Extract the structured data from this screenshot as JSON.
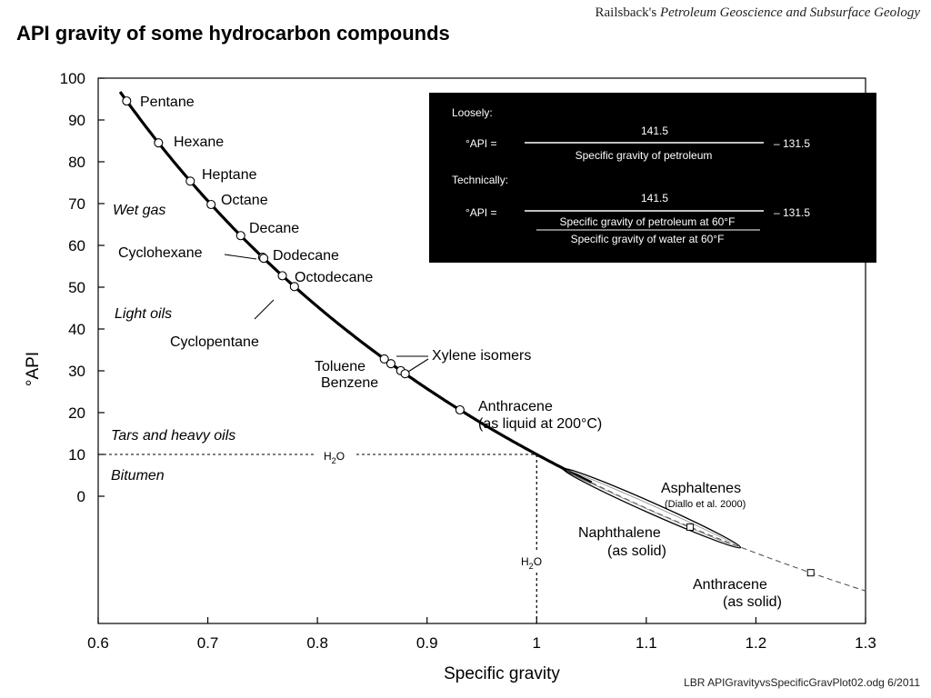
{
  "header": {
    "credit_prefix": "Railsback's ",
    "credit_italic": "Petroleum Geoscience and Subsurface Geology",
    "title": "API gravity of some hydrocarbon compounds"
  },
  "footer": {
    "file_note": "LBR APIGravityvsSpecificGravPlot02.odg  6/2011"
  },
  "formula_box": {
    "loosely_heading": "Loosely:",
    "loosely_lhs": "°API =",
    "loosely_numerator": "141.5",
    "loosely_denominator": "Specific gravity of petroleum",
    "loosely_rhs": "– 131.5",
    "technically_heading": "Technically:",
    "technically_lhs": "°API =",
    "technically_numerator": "141.5",
    "technically_denominator_top": "Specific gravity of petroleum at 60°F",
    "technically_denominator_bottom": "Specific gravity of water at 60°F",
    "technically_rhs": "– 131.5"
  },
  "regions": {
    "wet_gas": "Wet gas",
    "light_oils": "Light oils",
    "tars": "Tars and heavy oils",
    "bitumen": "Bitumen"
  },
  "reference_lines": {
    "h2o_horizontal_label": "H",
    "h2o_vertical_label": "H",
    "h2o_sub": "2",
    "h2o_suffix": "O"
  },
  "chart_data": {
    "type": "line",
    "xlabel": "Specific gravity",
    "ylabel": "°API",
    "xlim": [
      0.6,
      1.3
    ],
    "ylim": [
      0,
      100
    ],
    "x_ticks": [
      "0.6",
      "0.7",
      "0.8",
      "0.9",
      "1",
      "1.1",
      "1.2",
      "1.3"
    ],
    "y_ticks": [
      "0",
      "10",
      "20",
      "30",
      "40",
      "50",
      "60",
      "70",
      "80",
      "90",
      "100"
    ],
    "series": [
      {
        "curve": "API = 141.5 / SG − 131.5",
        "solid_range": [
          0.62,
          1.05
        ],
        "dashed_range": [
          1.05,
          1.3
        ]
      }
    ],
    "compounds": [
      {
        "name": "Pentane",
        "sg": 0.626,
        "api": 94.6,
        "marker": "circle"
      },
      {
        "name": "Hexane",
        "sg": 0.655,
        "api": 84.5,
        "marker": "circle"
      },
      {
        "name": "Heptane",
        "sg": 0.684,
        "api": 75.4,
        "marker": "circle"
      },
      {
        "name": "Octane",
        "sg": 0.703,
        "api": 69.8,
        "marker": "circle"
      },
      {
        "name": "Decane",
        "sg": 0.73,
        "api": 62.3,
        "marker": "circle"
      },
      {
        "name": "Cyclohexane",
        "sg": 0.779,
        "api": 50.1,
        "marker": "circle"
      },
      {
        "name": "Dodecane",
        "sg": 0.75,
        "api": 57.2,
        "marker": "circle"
      },
      {
        "name": "Octodecane",
        "sg": 0.768,
        "api": 52.7,
        "marker": "circle"
      },
      {
        "name": "Cyclopentane",
        "sg": 0.751,
        "api": 56.9,
        "marker": "circle"
      },
      {
        "name": "Toluene",
        "sg": 0.867,
        "api": 31.7,
        "marker": "circle"
      },
      {
        "name": "Benzene",
        "sg": 0.876,
        "api": 30.0,
        "marker": "circle"
      },
      {
        "name": "Xylene isomers",
        "sg": [
          0.861,
          0.88
        ],
        "api": [
          32.8,
          29.3
        ],
        "marker": "circle"
      },
      {
        "name": "Anthracene (as liquid at 200°C)",
        "sg": 0.93,
        "api": 20.7,
        "marker": "circle"
      },
      {
        "name": "Naphthalene (as solid)",
        "sg": 1.14,
        "api": -7.4,
        "marker": "square"
      },
      {
        "name": "Anthracene (as solid)",
        "sg": 1.25,
        "api": -18.3,
        "marker": "square"
      }
    ],
    "asphaltenes": {
      "name": "Asphaltenes",
      "source": "(Diallo et al. 2000)",
      "sg_range": [
        1.03,
        1.18
      ]
    },
    "annotations": {
      "pentane": "Pentane",
      "hexane": "Hexane",
      "heptane": "Heptane",
      "octane": "Octane",
      "decane": "Decane",
      "cyclohexane": "Cyclohexane",
      "dodecane": "Dodecane",
      "octodecane": "Octodecane",
      "cyclopentane": "Cyclopentane",
      "xylene": "Xylene isomers",
      "toluene": "Toluene",
      "benzene": "Benzene",
      "anthracene_liquid_1": "Anthracene",
      "anthracene_liquid_2": "(as liquid at 200°C)",
      "asphaltenes": "Asphaltenes",
      "asphaltenes_source": "(Diallo et al. 2000)",
      "naphthalene_1": "Naphthalene",
      "naphthalene_2": "(as solid)",
      "anthracene_solid_1": "Anthracene",
      "anthracene_solid_2": "(as solid)"
    }
  }
}
